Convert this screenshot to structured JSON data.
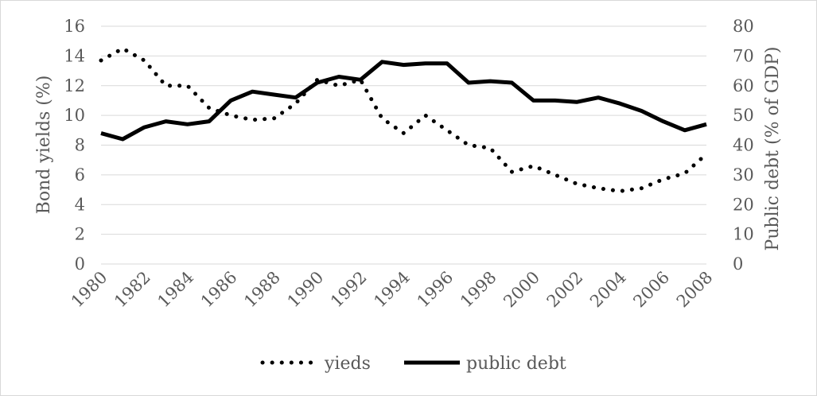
{
  "chart_data": {
    "type": "line",
    "x": [
      1980,
      1981,
      1982,
      1983,
      1984,
      1985,
      1986,
      1987,
      1988,
      1989,
      1990,
      1991,
      1992,
      1993,
      1994,
      1995,
      1996,
      1997,
      1998,
      1999,
      2000,
      2001,
      2002,
      2003,
      2004,
      2005,
      2006,
      2007,
      2008
    ],
    "x_tick_labels": [
      "1980",
      "1982",
      "1984",
      "1986",
      "1988",
      "1990",
      "1992",
      "1994",
      "1996",
      "1998",
      "2000",
      "2002",
      "2004",
      "2006",
      "2008"
    ],
    "ylabel": "Bond yields (%)",
    "y2label": "Public debt  (% of GDP)",
    "ylim": [
      0,
      16
    ],
    "y2lim": [
      0,
      80
    ],
    "y_ticks": [
      "0",
      "2",
      "4",
      "6",
      "8",
      "10",
      "12",
      "14",
      "16"
    ],
    "y2_ticks": [
      "0",
      "10",
      "20",
      "30",
      "40",
      "50",
      "60",
      "70",
      "80"
    ],
    "grid": "horizontal",
    "legend_position": "bottom",
    "series": [
      {
        "name": "yieds",
        "axis": "left",
        "style": "dotted",
        "color": "#000000",
        "values": [
          13.7,
          14.5,
          13.7,
          12.0,
          12.0,
          10.5,
          10.0,
          9.7,
          9.8,
          10.8,
          12.4,
          12.0,
          12.4,
          9.8,
          8.8,
          10.0,
          9.0,
          8.0,
          7.8,
          6.2,
          6.6,
          6.0,
          5.4,
          5.1,
          4.9,
          5.1,
          5.7,
          6.1,
          7.4
        ]
      },
      {
        "name": "public debt",
        "axis": "right",
        "style": "solid",
        "color": "#000000",
        "values": [
          44,
          42,
          46,
          48,
          47,
          48,
          55,
          58,
          57,
          56,
          61,
          63,
          62,
          68,
          67,
          67.5,
          67.5,
          61,
          61.5,
          61,
          55,
          55,
          54.5,
          56,
          54,
          51.5,
          48,
          45,
          47
        ]
      }
    ]
  }
}
